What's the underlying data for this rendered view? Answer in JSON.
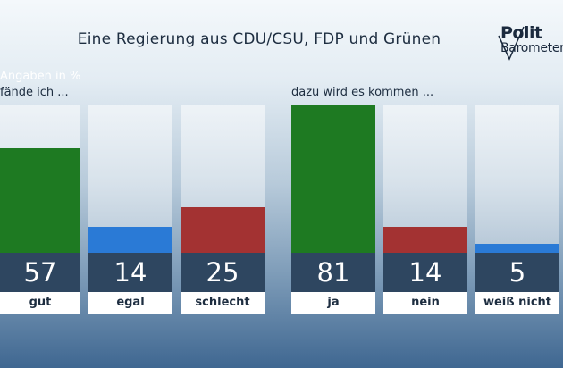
{
  "title": "Eine Regierung aus CDU/CSU, FDP und Grünen",
  "logo": {
    "line1": "Polit",
    "line2": "Barometer"
  },
  "unit_label": "Angaben in %",
  "chart_data": [
    {
      "type": "bar",
      "subtitle": "fände ich ...",
      "categories": [
        "gut",
        "egal",
        "schlecht"
      ],
      "values": [
        57,
        14,
        25
      ],
      "colors": [
        "#1e7a22",
        "#2a7ad6",
        "#a33232"
      ],
      "ylim": [
        0,
        81
      ]
    },
    {
      "type": "bar",
      "subtitle": "dazu wird es kommen ...",
      "categories": [
        "ja",
        "nein",
        "weiß nicht"
      ],
      "values": [
        81,
        14,
        5
      ],
      "colors": [
        "#1e7a22",
        "#a33232",
        "#2a7ad6"
      ],
      "ylim": [
        0,
        81
      ]
    }
  ]
}
